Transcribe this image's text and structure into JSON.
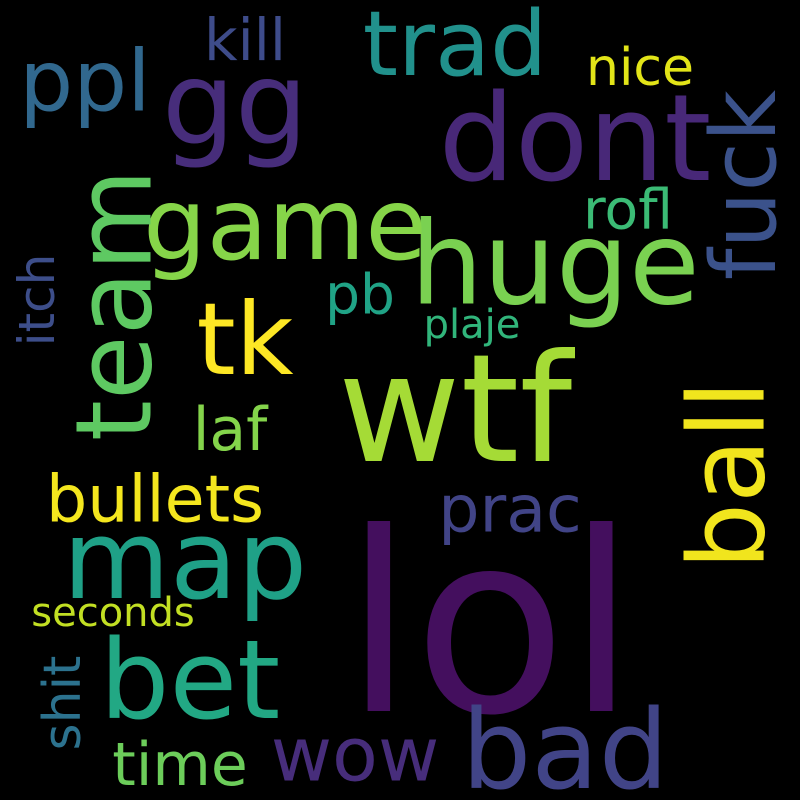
{
  "cloud": {
    "background": "#000000",
    "words": {
      "lol": {
        "text": "lol",
        "color": "#440f5e"
      },
      "wtf": {
        "text": "wtf",
        "color": "#a5db36"
      },
      "dont": {
        "text": "dont",
        "color": "#482878"
      },
      "huge": {
        "text": "huge",
        "color": "#7ad151"
      },
      "gg": {
        "text": "gg",
        "color": "#472d7b"
      },
      "game": {
        "text": "game",
        "color": "#86d549"
      },
      "team": {
        "text": "team",
        "color": "#5ec962"
      },
      "fuck": {
        "text": "fuck",
        "color": "#3b528b"
      },
      "ball": {
        "text": "ball",
        "color": "#f1e51d"
      },
      "map": {
        "text": "map",
        "color": "#1fa187"
      },
      "bet": {
        "text": "bet",
        "color": "#22a884"
      },
      "bad": {
        "text": "bad",
        "color": "#414487"
      },
      "trad": {
        "text": "trad",
        "color": "#21918c"
      },
      "tk": {
        "text": "tk",
        "color": "#fde725"
      },
      "ppl": {
        "text": "ppl",
        "color": "#31688e"
      },
      "wow": {
        "text": "wow",
        "color": "#472d7b"
      },
      "bullets": {
        "text": "bullets",
        "color": "#f4e61e"
      },
      "prac": {
        "text": "prac",
        "color": "#414487"
      },
      "time": {
        "text": "time",
        "color": "#6ccd5a"
      },
      "laf": {
        "text": "laf",
        "color": "#84d44b"
      },
      "kill": {
        "text": "kill",
        "color": "#3e4c8a"
      },
      "nice": {
        "text": "nice",
        "color": "#e2e418"
      },
      "rofl": {
        "text": "rofl",
        "color": "#3bbb75"
      },
      "pb": {
        "text": "pb",
        "color": "#20a386"
      },
      "itch": {
        "text": "itch",
        "color": "#3d4e8a"
      },
      "plaje": {
        "text": "plaje",
        "color": "#31b57b"
      },
      "seconds": {
        "text": "seconds",
        "color": "#c2df23"
      },
      "shit": {
        "text": "shit",
        "color": "#2c728e"
      }
    }
  }
}
